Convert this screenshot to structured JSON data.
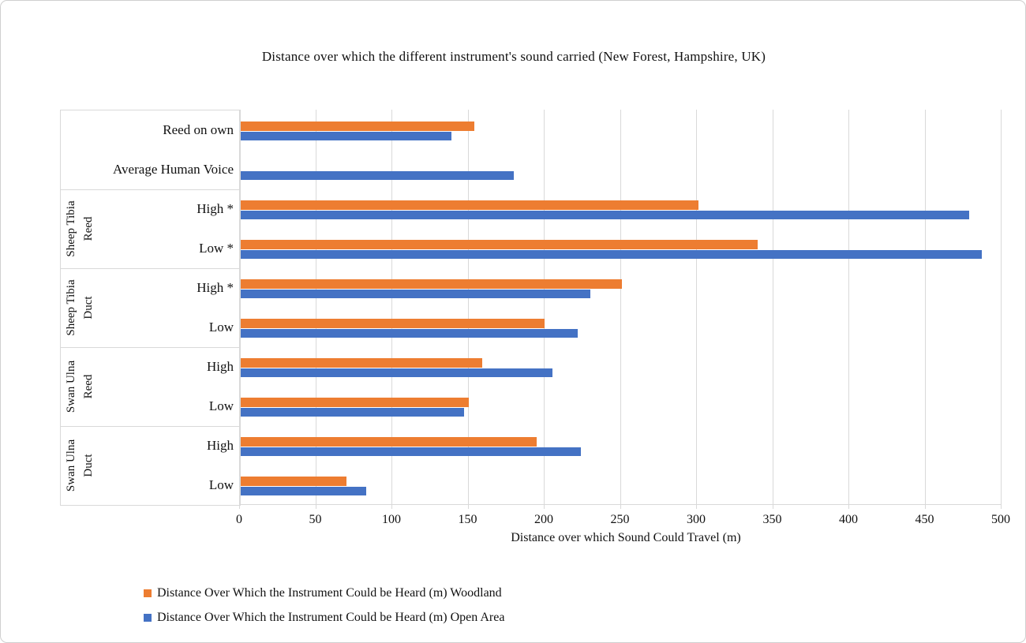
{
  "chart_data": {
    "type": "bar",
    "orientation": "horizontal",
    "title": "Distance over which the different instrument's sound carried (New Forest, Hampshire, UK)",
    "xlabel": "Distance over which Sound Could Travel (m)",
    "xlim": [
      0,
      500
    ],
    "xticks": [
      0,
      50,
      100,
      150,
      200,
      250,
      300,
      350,
      400,
      450,
      500
    ],
    "grid": true,
    "legend_position": "bottom-left",
    "gridline_color": "#d9d9d9",
    "categories": [
      "Reed on own",
      "Average Human Voice",
      "High *",
      "Low *",
      "High *",
      "Low",
      "High",
      "Low",
      "High",
      "Low"
    ],
    "groups": [
      {
        "label": "",
        "label_lines": [],
        "items": [
          "Reed on own",
          "Average Human Voice"
        ]
      },
      {
        "label": "Sheep Tibia Reed",
        "label_lines": [
          "Sheep Tibia",
          "Reed"
        ],
        "items": [
          "High *",
          "Low *"
        ]
      },
      {
        "label": "Sheep Tibia Duct",
        "label_lines": [
          "Sheep Tibia",
          "Duct"
        ],
        "items": [
          "High *",
          "Low"
        ]
      },
      {
        "label": "Swan Ulna Reed",
        "label_lines": [
          "Swan Ulna",
          "Reed"
        ],
        "items": [
          "High",
          "Low"
        ]
      },
      {
        "label": "Swan Ulna Duct",
        "label_lines": [
          "Swan Ulna",
          "Duct"
        ],
        "items": [
          "High",
          "Low"
        ]
      }
    ],
    "series": [
      {
        "name": "Distance Over Which the Instrument Could be Heard (m) Woodland",
        "color": "#ED7D31",
        "values": [
          154,
          null,
          301,
          340,
          251,
          200,
          159,
          150,
          195,
          70
        ]
      },
      {
        "name": "Distance Over Which the Instrument Could be Heard (m) Open Area",
        "color": "#4472C4",
        "values": [
          139,
          180,
          479,
          487,
          230,
          222,
          205,
          147,
          224,
          83
        ]
      }
    ]
  }
}
